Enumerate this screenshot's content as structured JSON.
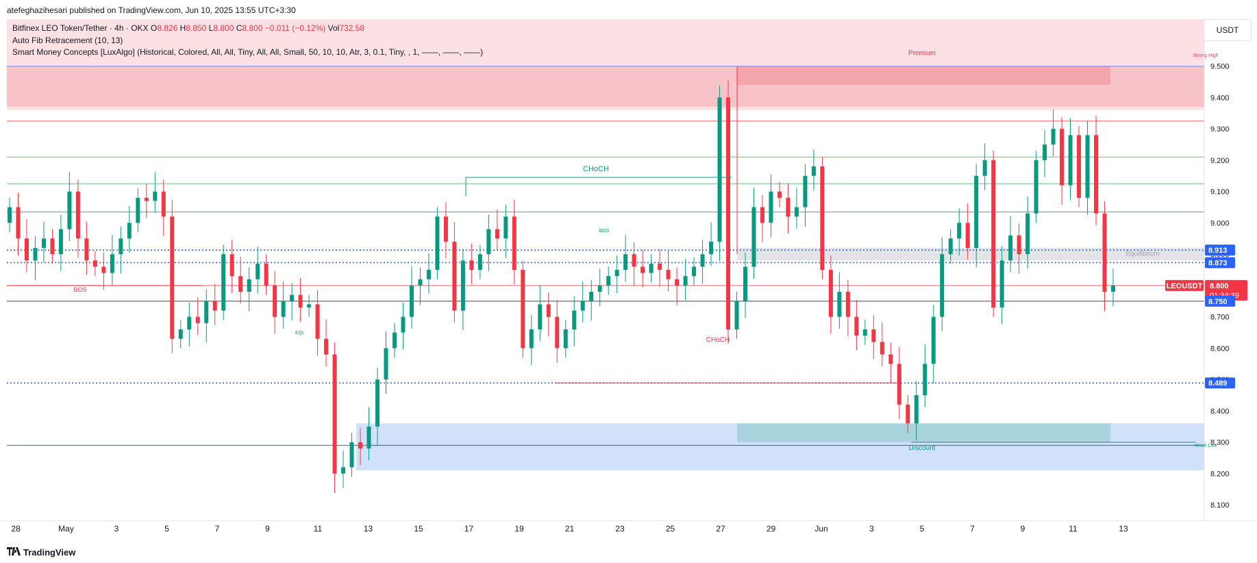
{
  "header": {
    "published_by": "atefeghazihesari published on TradingView.com, Jun 10, 2025 13:55 UTC+3:30"
  },
  "legend": {
    "symbol": "Bitfinex LEO Token/Tether · 4h · OKX",
    "o_label": "O",
    "o_value": "8.826",
    "h_label": "H",
    "h_value": "8.850",
    "l_label": "L",
    "l_value": "8.800",
    "c_label": "C",
    "c_value": "8.800",
    "change": "−0.011 (−0.12%)",
    "vol_label": "Vol",
    "vol_value": "732.58",
    "indicator1": "Auto Fib Retracement (10, 13)",
    "indicator2": "Smart Money Concepts [LuxAlgo] (Historical, Colored, All, All, Tiny, All, All, Small, 50, 10, 10, Atr, 3, 0.1, Tiny, , 1, ——, ——, ——)"
  },
  "currency": "USDT",
  "footer_logo": "TradingView",
  "colors": {
    "up": "#089981",
    "down": "#f23645",
    "premium_zone": "#f8c8cc",
    "discount_zone": "#c8dcf8",
    "equilibrium_zone": "#d6d8de",
    "dotted_blue": "#2962ff"
  },
  "chart_data": {
    "type": "candlestick",
    "symbol_label": "LEOUSDT",
    "timeframe": "4h",
    "ylim": [
      8.05,
      9.65
    ],
    "y_ticks": [
      "9.500",
      "9.400",
      "9.300",
      "9.200",
      "9.100",
      "9.000",
      "8.900",
      "8.800",
      "8.700",
      "8.600",
      "8.500",
      "8.400",
      "8.300",
      "8.200",
      "8.100"
    ],
    "x_ticks": [
      "28",
      "May",
      "3",
      "5",
      "7",
      "9",
      "11",
      "13",
      "15",
      "17",
      "19",
      "21",
      "23",
      "25",
      "27",
      "29",
      "Jun",
      "3",
      "5",
      "7",
      "9",
      "11",
      "13"
    ],
    "price_tags": [
      {
        "label": "8.913",
        "value": 8.913
      },
      {
        "label": "8.873",
        "value": 8.873
      },
      {
        "label": "LEOUSDT",
        "value": 8.8
      },
      {
        "label": "8.800",
        "value": 8.8
      },
      {
        "label": "01:34:39",
        "value": 8.8
      },
      {
        "label": "8.750",
        "value": 8.75
      },
      {
        "label": "8.489",
        "value": 8.489
      }
    ],
    "closes": [
      9.05,
      8.95,
      8.88,
      8.92,
      8.95,
      8.9,
      8.98,
      9.1,
      8.95,
      8.88,
      8.86,
      8.84,
      8.9,
      8.95,
      9.0,
      9.08,
      9.07,
      9.1,
      9.02,
      8.63,
      8.66,
      8.7,
      8.68,
      8.75,
      8.72,
      8.9,
      8.83,
      8.78,
      8.82,
      8.87,
      8.8,
      8.7,
      8.75,
      8.77,
      8.73,
      8.74,
      8.63,
      8.58,
      8.2,
      8.22,
      8.3,
      8.28,
      8.35,
      8.5,
      8.6,
      8.65,
      8.7,
      8.8,
      8.82,
      8.85,
      9.02,
      8.94,
      8.72,
      8.88,
      8.85,
      8.9,
      8.98,
      8.95,
      9.02,
      8.85,
      8.6,
      8.66,
      8.74,
      8.7,
      8.6,
      8.66,
      8.72,
      8.75,
      8.78,
      8.8,
      8.83,
      8.85,
      8.9,
      8.86,
      8.84,
      8.87,
      8.85,
      8.82,
      8.8,
      8.83,
      8.86,
      8.9,
      8.94,
      9.4,
      8.66,
      8.75,
      8.86,
      9.05,
      9.0,
      9.1,
      9.08,
      9.02,
      9.05,
      9.15,
      9.18,
      8.85,
      8.7,
      8.78,
      8.7,
      8.64,
      8.66,
      8.62,
      8.58,
      8.55,
      8.42,
      8.36,
      8.45,
      8.55,
      8.7,
      8.9,
      8.95,
      9.0,
      8.92,
      9.15,
      9.2,
      8.73,
      8.88,
      8.96,
      8.9,
      9.03,
      9.2,
      9.25,
      9.3,
      9.12,
      9.28,
      9.08,
      9.28,
      9.03,
      8.78,
      8.8
    ],
    "annotations": [
      {
        "text": "CHoCH",
        "color": "#089981"
      },
      {
        "text": "CHoCH",
        "color": "#f23645"
      },
      {
        "text": "BOS",
        "color": "#f23645"
      },
      {
        "text": "BOS",
        "color": "#089981"
      },
      {
        "text": "EQL",
        "color": "#089981"
      },
      {
        "text": "Premium",
        "color": "#f23645"
      },
      {
        "text": "Discount",
        "color": "#089981"
      },
      {
        "text": "Equilibrium",
        "color": "#a0a4ad"
      },
      {
        "text": "Strong High",
        "color": "#f23645"
      },
      {
        "text": "Weak Low",
        "color": "#089981"
      }
    ]
  }
}
